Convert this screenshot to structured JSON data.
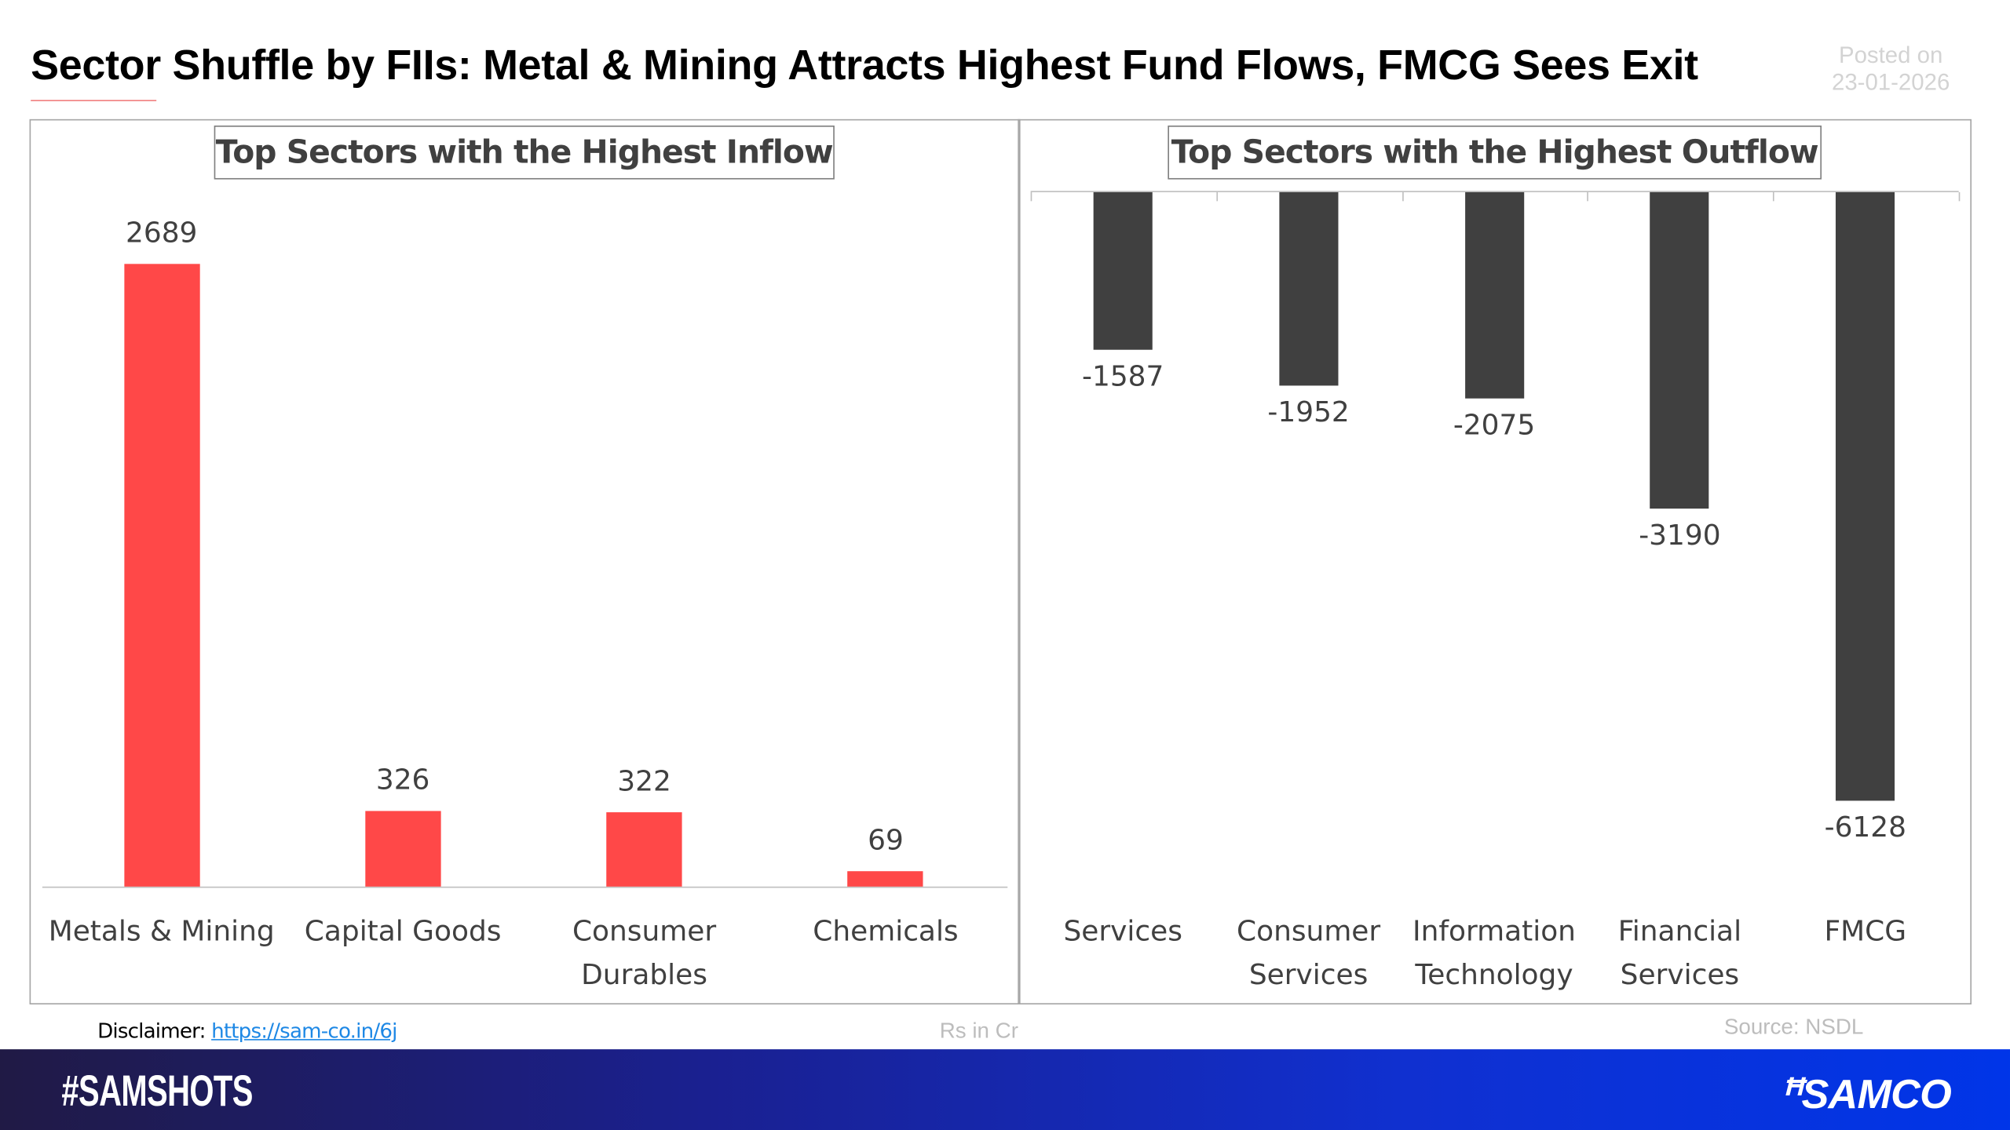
{
  "header": {
    "title": "Sector Shuffle by FIIs: Metal & Mining Attracts Highest Fund Flows, FMCG Sees Exit",
    "posted_label": "Posted on",
    "posted_date": "23-01-2026"
  },
  "chart_data": [
    {
      "type": "bar",
      "title": "Top Sectors with the Highest Inflow",
      "categories": [
        "Metals & Mining",
        "Capital Goods",
        "Consumer Durables",
        "Chemicals"
      ],
      "values": [
        2689,
        326,
        322,
        69
      ],
      "color": "#ff4848",
      "ylim": [
        0,
        2689
      ]
    },
    {
      "type": "bar",
      "title": "Top Sectors with the Highest Outflow",
      "categories": [
        "Services",
        "Consumer Services",
        "Information Technology",
        "Financial Services",
        "FMCG"
      ],
      "values": [
        -1587,
        -1952,
        -2075,
        -3190,
        -6128
      ],
      "color": "#404040",
      "ylim": [
        -6128,
        0
      ]
    }
  ],
  "footer": {
    "disclaimer_label": "Disclaimer:",
    "disclaimer_link": "https://sam-co.in/6j",
    "units": "Rs in Cr",
    "source": "Source: NSDL"
  },
  "banner": {
    "hashtag": "#SAMSHOTS",
    "brand": "SAMCO",
    "brand_icon": "samco-logo-icon"
  }
}
